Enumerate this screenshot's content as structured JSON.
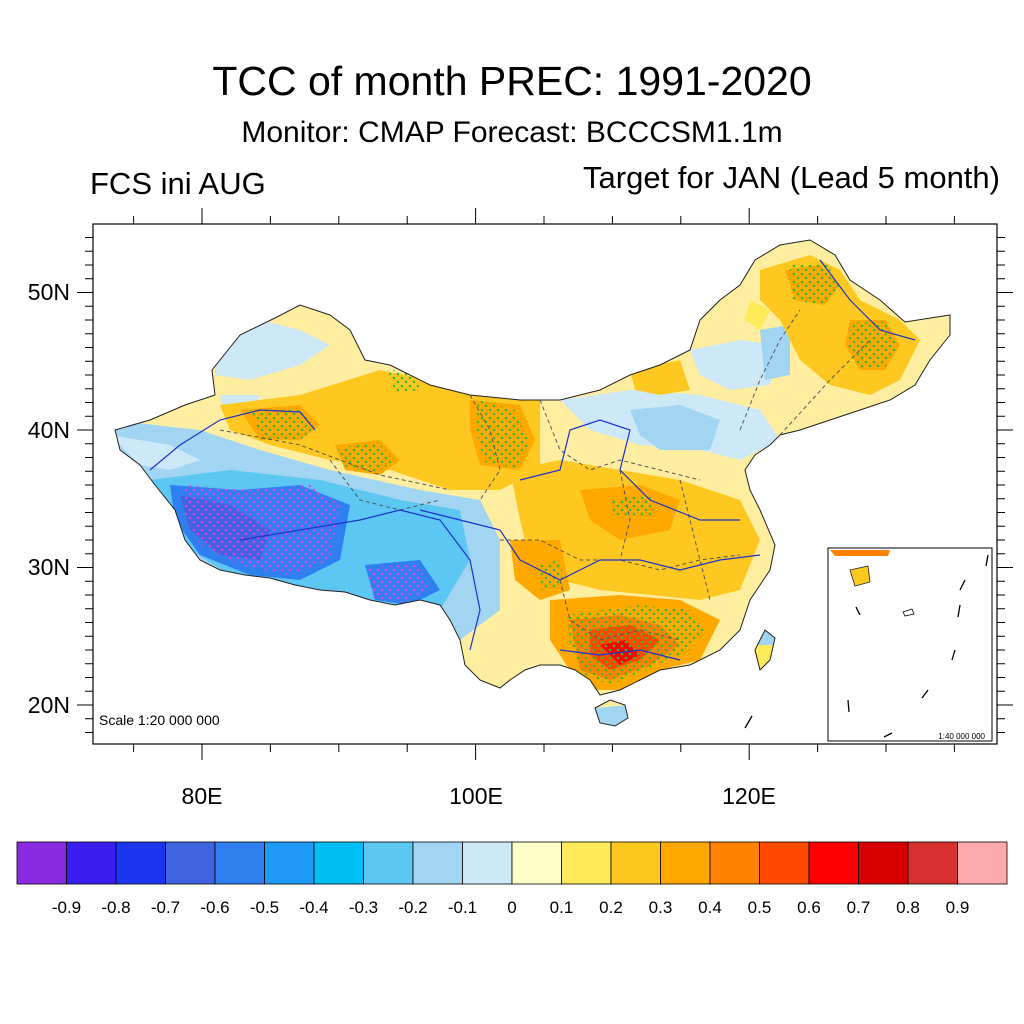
{
  "header": {
    "title": "TCC of month PREC: 1991-2020",
    "subtitle": "Monitor: CMAP   Forecast: BCCCSM1.1m",
    "left_label": "FCS ini AUG",
    "right_label": "Target for JAN (Lead 5 month)"
  },
  "map": {
    "lat_labels": [
      "50N",
      "40N",
      "30N",
      "20N"
    ],
    "lon_labels": [
      "80E",
      "100E",
      "120E"
    ],
    "scale_main": "Scale 1:20 000 000",
    "scale_inset": "1:40 000 000"
  },
  "colorbar": {
    "colors": [
      "#8a2be2",
      "#3a1ef0",
      "#1c36f0",
      "#3f64e0",
      "#2f7ff0",
      "#1e9bf5",
      "#00bff5",
      "#5cc7f2",
      "#a2d5f2",
      "#cde8f6",
      "#ffffc8",
      "#ffea5a",
      "#ffc820",
      "#ffa800",
      "#ff8200",
      "#ff4a00",
      "#ff0000",
      "#d70000",
      "#d93030",
      "#ffaaaa"
    ],
    "labels": [
      "-0.9",
      "-0.8",
      "-0.7",
      "-0.6",
      "-0.5",
      "-0.4",
      "-0.3",
      "-0.2",
      "-0.1",
      "0",
      "0.1",
      "0.2",
      "0.3",
      "0.4",
      "0.5",
      "0.6",
      "0.7",
      "0.8",
      "0.9"
    ]
  }
}
